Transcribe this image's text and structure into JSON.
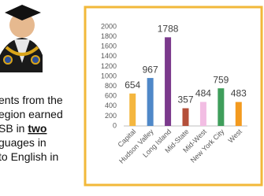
{
  "slide_text": {
    "lines": [
      [
        "ents from the"
      ],
      [
        "egion earned"
      ],
      [
        "SB in ",
        "two"
      ],
      [
        "guages in"
      ],
      [
        "to English in"
      ]
    ]
  },
  "chart_data": {
    "type": "bar",
    "categories": [
      "Capital",
      "Hudson Valley",
      "Long Island",
      "Mid-State",
      "Mid-West",
      "New York City",
      "West"
    ],
    "values": [
      654,
      967,
      1788,
      357,
      484,
      759,
      483
    ],
    "colors": [
      "#f4b63f",
      "#4f88c8",
      "#7b3a8c",
      "#b4503a",
      "#f2bde3",
      "#3f9e5b",
      "#f39a1f"
    ],
    "ylim": [
      0,
      2000
    ],
    "yticks": [
      0,
      200,
      400,
      600,
      800,
      1000,
      1200,
      1400,
      1600,
      1800,
      2000
    ],
    "grid": false
  }
}
